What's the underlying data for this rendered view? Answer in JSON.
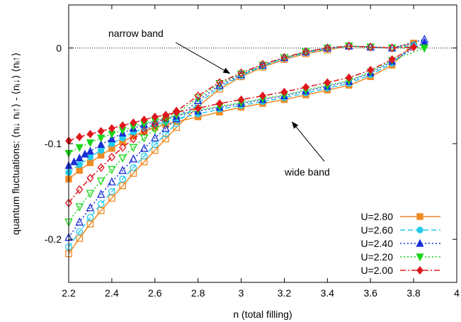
{
  "chart_data": {
    "type": "line",
    "xlabel": "n (total filling)",
    "ylabel": "quantum fluctuations: ⟨nᵢ↓ nᵢ↑⟩ - ⟨nᵢ↓⟩ ⟨nᵢ↑⟩",
    "xlim": [
      2.2,
      4.0
    ],
    "ylim": [
      -0.245,
      0.045
    ],
    "xticks": [
      2.2,
      2.4,
      2.6,
      2.8,
      3.0,
      3.2,
      3.4,
      3.6,
      3.8,
      4.0
    ],
    "xtick_labels": [
      "2.2",
      "2.4",
      "2.6",
      "2.8",
      "3",
      "3.2",
      "3.4",
      "3.6",
      "3.8",
      "4"
    ],
    "yticks": [
      -0.2,
      -0.1,
      0.0
    ],
    "ytick_labels": [
      "-0.2",
      "-0.1",
      "0"
    ],
    "zero_line": true,
    "grid": false,
    "legend_position": "bottom-right",
    "annotations": [
      {
        "text": "narrow band",
        "x": 2.96,
        "y": -0.028
      },
      {
        "text": "wide band",
        "x": 3.22,
        "y": -0.07
      }
    ],
    "series": [
      {
        "name": "U=2.80",
        "color": "#f08a24",
        "dash": "solid",
        "marker": "square",
        "narrow": {
          "x": [
            2.2,
            2.25,
            2.3,
            2.35,
            2.4,
            2.45,
            2.5,
            2.55,
            2.6,
            2.65,
            2.7,
            2.8,
            2.9,
            3.0,
            3.1,
            3.2,
            3.3,
            3.4,
            3.5,
            3.6,
            3.7,
            3.8
          ],
          "y": [
            -0.215,
            -0.199,
            -0.184,
            -0.17,
            -0.157,
            -0.144,
            -0.131,
            -0.119,
            -0.107,
            -0.095,
            -0.083,
            -0.061,
            -0.043,
            -0.03,
            -0.02,
            -0.012,
            -0.006,
            -0.002,
            0.002,
            0.001,
            0.0,
            0.005
          ]
        },
        "wide": {
          "x": [
            2.2,
            2.25,
            2.3,
            2.35,
            2.4,
            2.45,
            2.5,
            2.55,
            2.6,
            2.65,
            2.7,
            2.8,
            2.9,
            3.0,
            3.1,
            3.2,
            3.3,
            3.4,
            3.5,
            3.6,
            3.7,
            3.8
          ],
          "y": [
            -0.137,
            -0.128,
            -0.12,
            -0.112,
            -0.105,
            -0.098,
            -0.092,
            -0.087,
            -0.083,
            -0.08,
            -0.077,
            -0.072,
            -0.067,
            -0.062,
            -0.058,
            -0.054,
            -0.049,
            -0.044,
            -0.039,
            -0.03,
            -0.018,
            0.005
          ]
        }
      },
      {
        "name": "U=2.60",
        "color": "#22ccee",
        "dash": "dashed",
        "marker": "circle",
        "narrow": {
          "x": [
            2.2,
            2.25,
            2.3,
            2.35,
            2.4,
            2.45,
            2.5,
            2.55,
            2.6,
            2.65,
            2.7,
            2.8,
            2.9,
            3.0,
            3.1,
            3.2,
            3.3,
            3.4,
            3.5,
            3.6,
            3.7,
            3.8
          ],
          "y": [
            -0.208,
            -0.192,
            -0.177,
            -0.163,
            -0.15,
            -0.137,
            -0.125,
            -0.113,
            -0.101,
            -0.09,
            -0.079,
            -0.058,
            -0.041,
            -0.029,
            -0.019,
            -0.011,
            -0.005,
            -0.001,
            0.002,
            0.001,
            0.0,
            0.003
          ]
        },
        "wide": {
          "x": [
            2.2,
            2.25,
            2.3,
            2.35,
            2.4,
            2.45,
            2.5,
            2.55,
            2.6,
            2.65,
            2.7,
            2.8,
            2.9,
            3.0,
            3.1,
            3.2,
            3.3,
            3.4,
            3.5,
            3.6,
            3.7,
            3.8
          ],
          "y": [
            -0.13,
            -0.122,
            -0.114,
            -0.107,
            -0.1,
            -0.094,
            -0.088,
            -0.084,
            -0.08,
            -0.077,
            -0.074,
            -0.069,
            -0.064,
            -0.06,
            -0.056,
            -0.052,
            -0.047,
            -0.042,
            -0.037,
            -0.028,
            -0.016,
            0.003
          ]
        }
      },
      {
        "name": "U=2.40",
        "color": "#1a2ed6",
        "dash": "dotted",
        "marker": "triangle-up",
        "narrow": {
          "x": [
            2.2,
            2.25,
            2.3,
            2.35,
            2.4,
            2.45,
            2.5,
            2.55,
            2.6,
            2.65,
            2.7,
            2.8,
            2.9,
            3.0,
            3.1,
            3.2,
            3.3,
            3.4,
            3.5,
            3.6,
            3.7,
            3.85
          ],
          "y": [
            -0.198,
            -0.182,
            -0.167,
            -0.153,
            -0.14,
            -0.128,
            -0.116,
            -0.105,
            -0.094,
            -0.084,
            -0.074,
            -0.055,
            -0.039,
            -0.028,
            -0.018,
            -0.01,
            -0.004,
            0.0,
            0.002,
            0.001,
            0.0,
            0.009
          ]
        },
        "wide": {
          "x": [
            2.2,
            2.225,
            2.25,
            2.275,
            2.3,
            2.35,
            2.4,
            2.45,
            2.5,
            2.55,
            2.6,
            2.65,
            2.7,
            2.8,
            2.9,
            3.0,
            3.1,
            3.2,
            3.3,
            3.4,
            3.5,
            3.6,
            3.7,
            3.85
          ],
          "y": [
            -0.123,
            -0.119,
            -0.115,
            -0.111,
            -0.108,
            -0.101,
            -0.095,
            -0.089,
            -0.084,
            -0.08,
            -0.077,
            -0.074,
            -0.071,
            -0.066,
            -0.062,
            -0.058,
            -0.054,
            -0.05,
            -0.045,
            -0.04,
            -0.035,
            -0.026,
            -0.014,
            0.006
          ]
        }
      },
      {
        "name": "U=2.20",
        "color": "#19d619",
        "dash": "dotted",
        "marker": "triangle-down",
        "narrow": {
          "x": [
            2.2,
            2.25,
            2.3,
            2.35,
            2.4,
            2.45,
            2.5,
            2.55,
            2.6,
            2.65,
            2.7,
            2.8,
            2.9,
            3.0,
            3.1,
            3.2,
            3.3,
            3.4,
            3.5,
            3.6,
            3.7,
            3.85
          ],
          "y": [
            -0.182,
            -0.166,
            -0.152,
            -0.139,
            -0.127,
            -0.115,
            -0.104,
            -0.094,
            -0.085,
            -0.077,
            -0.069,
            -0.052,
            -0.037,
            -0.027,
            -0.018,
            -0.01,
            -0.004,
            0.0,
            0.002,
            0.001,
            0.0,
            0.0
          ]
        },
        "wide": {
          "x": [
            2.2,
            2.25,
            2.3,
            2.35,
            2.4,
            2.45,
            2.5,
            2.55,
            2.6,
            2.65,
            2.7,
            2.8,
            2.9,
            3.0,
            3.1,
            3.2,
            3.3,
            3.4,
            3.5,
            3.6,
            3.7,
            3.85
          ],
          "y": [
            -0.11,
            -0.104,
            -0.099,
            -0.094,
            -0.09,
            -0.086,
            -0.082,
            -0.079,
            -0.076,
            -0.073,
            -0.07,
            -0.065,
            -0.061,
            -0.057,
            -0.053,
            -0.049,
            -0.044,
            -0.039,
            -0.034,
            -0.025,
            -0.013,
            0.0
          ]
        }
      },
      {
        "name": "U=2.00",
        "color": "#e0161e",
        "dash": "dashdot",
        "marker": "diamond",
        "narrow": {
          "x": [
            2.2,
            2.25,
            2.3,
            2.35,
            2.4,
            2.45,
            2.5,
            2.55,
            2.6,
            2.65,
            2.7,
            2.8,
            2.9,
            3.0,
            3.1,
            3.2,
            3.3,
            3.4,
            3.5,
            3.6,
            3.7,
            3.8
          ],
          "y": [
            -0.162,
            -0.148,
            -0.136,
            -0.125,
            -0.114,
            -0.104,
            -0.095,
            -0.087,
            -0.08,
            -0.073,
            -0.066,
            -0.05,
            -0.036,
            -0.026,
            -0.017,
            -0.01,
            -0.004,
            0.0,
            0.002,
            0.001,
            0.0,
            0.001
          ]
        },
        "wide": {
          "x": [
            2.2,
            2.25,
            2.3,
            2.35,
            2.4,
            2.45,
            2.5,
            2.55,
            2.6,
            2.65,
            2.7,
            2.8,
            2.9,
            3.0,
            3.1,
            3.2,
            3.3,
            3.4,
            3.5,
            3.6,
            3.7,
            3.8
          ],
          "y": [
            -0.097,
            -0.093,
            -0.09,
            -0.087,
            -0.084,
            -0.081,
            -0.078,
            -0.075,
            -0.072,
            -0.07,
            -0.067,
            -0.063,
            -0.058,
            -0.054,
            -0.05,
            -0.046,
            -0.041,
            -0.036,
            -0.031,
            -0.023,
            -0.012,
            0.001
          ]
        }
      }
    ]
  }
}
